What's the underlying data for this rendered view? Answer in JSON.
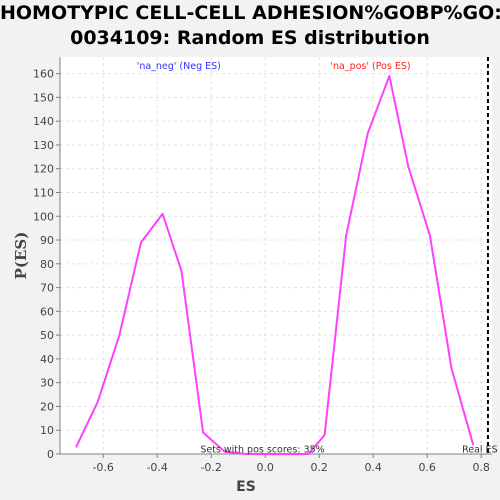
{
  "title_line1": "HOMOTYPIC CELL-CELL ADHESION%GOBP%GO:",
  "title_line2": "0034109: Random ES distribution",
  "chart_data": {
    "type": "line",
    "xlabel": "ES",
    "ylabel": "P(ES)",
    "xlim": [
      -0.76,
      0.84
    ],
    "ylim": [
      0,
      167
    ],
    "x_ticks": [
      -0.6,
      -0.4,
      -0.2,
      0.0,
      0.2,
      0.4,
      0.6,
      0.8
    ],
    "x_tick_labels": [
      "-0.6",
      "-0.4",
      "-0.2",
      "0.0",
      "0.2",
      "0.4",
      "0.6",
      "0.8"
    ],
    "y_ticks": [
      0,
      10,
      20,
      30,
      40,
      50,
      60,
      70,
      80,
      90,
      100,
      110,
      120,
      130,
      140,
      150,
      160
    ],
    "y_tick_labels": [
      "0",
      "10",
      "20",
      "30",
      "40",
      "50",
      "60",
      "70",
      "80",
      "90",
      "100",
      "110",
      "120",
      "130",
      "140",
      "150",
      "160"
    ],
    "grid": true,
    "series": [
      {
        "color": "#ff40ff",
        "x": [
          -0.7,
          -0.62,
          -0.54,
          -0.46,
          -0.38,
          -0.31,
          -0.23,
          -0.15,
          -0.07,
          0.0,
          0.08,
          0.16,
          0.22,
          0.3,
          0.38,
          0.46,
          0.53,
          0.61,
          0.69,
          0.77
        ],
        "y": [
          3,
          22,
          50,
          89,
          101,
          77,
          9,
          1,
          0,
          0,
          0,
          0,
          8,
          92,
          135,
          159,
          121,
          92,
          36,
          4
        ]
      }
    ],
    "annotations": [
      {
        "text": "'na_neg' (Neg ES)",
        "x": -0.32,
        "y": 162,
        "color": "#3333ff"
      },
      {
        "text": "'na_pos' (Pos ES)",
        "x": 0.39,
        "y": 162,
        "color": "#ff2020"
      },
      {
        "text": "Sets with pos scores: 35%",
        "x": -0.01,
        "y": 0.7,
        "color": "#333333"
      },
      {
        "text": "Real ES",
        "x": 0.795,
        "y": 0.7,
        "color": "#333333"
      }
    ],
    "real_es_line": {
      "x": 0.825,
      "style": "dashed",
      "color": "#000000"
    }
  }
}
